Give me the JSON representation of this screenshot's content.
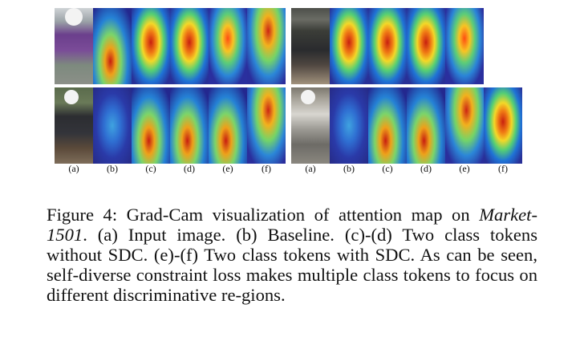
{
  "figure": {
    "panel_labels_left": [
      "(a)",
      "(b)",
      "(c)",
      "(d)",
      "(e)",
      "(f)"
    ],
    "panel_labels_right": [
      "(a)",
      "(b)",
      "(c)",
      "(d)",
      "(e)",
      "(f)"
    ],
    "caption": {
      "prefix": "Figure 4: Grad-Cam visualization of attention map on ",
      "dataset": "Market-1501",
      "rest": ". (a) Input image. (b) Baseline. (c)-(d) Two class tokens without SDC. (e)-(f) Two class tokens with SDC. As can be seen, self-diverse constraint loss makes multiple class tokens to focus on different discriminative re-gions."
    }
  }
}
